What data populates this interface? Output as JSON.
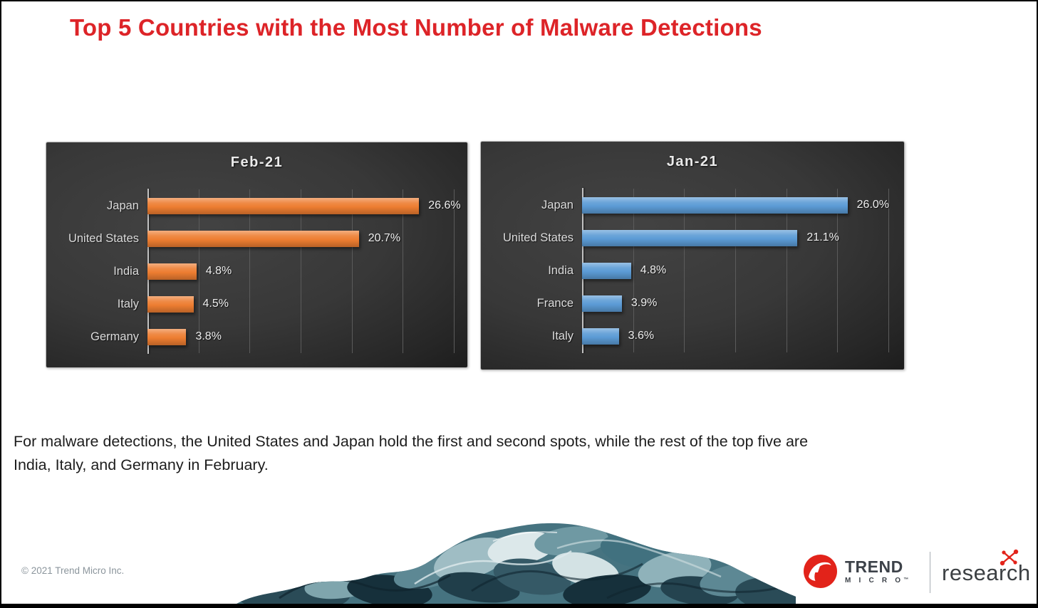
{
  "slide": {
    "title": "Top 5 Countries with the Most Number of Malware Detections",
    "body_lines": [
      "For malware detections, the United States and Japan hold the first and second spots, while the rest of the top five are",
      "India, Italy, and Germany in February."
    ],
    "copyright": "© 2021 Trend Micro Inc."
  },
  "logo": {
    "brand_line1": "TREND",
    "brand_line2": "M I C R O",
    "trademark": "™",
    "research_label": "research"
  },
  "colors": {
    "title_red": "#DD2428",
    "brand_red": "#E2231A",
    "feb_bar_orange": "#ED7D31",
    "jan_bar_blue": "#5B9BD5",
    "chart_background": "#333333",
    "chart_text": "#E0E0E0"
  },
  "chart_data": [
    {
      "type": "bar",
      "orientation": "horizontal",
      "title": "Feb-21",
      "categories": [
        "Japan",
        "United States",
        "India",
        "Italy",
        "Germany"
      ],
      "values": [
        26.6,
        20.7,
        4.8,
        4.5,
        3.8
      ],
      "value_labels": [
        "26.6%",
        "20.7%",
        "4.8%",
        "4.5%",
        "3.8%"
      ],
      "bar_color": "#ED7D31",
      "xlim": [
        0,
        30
      ],
      "gridline_step": 5,
      "grid": "vertical-lines",
      "legend": "none",
      "background": "dark"
    },
    {
      "type": "bar",
      "orientation": "horizontal",
      "title": "Jan-21",
      "categories": [
        "Japan",
        "United States",
        "India",
        "France",
        "Italy"
      ],
      "values": [
        26.0,
        21.1,
        4.8,
        3.9,
        3.6
      ],
      "value_labels": [
        "26.0%",
        "21.1%",
        "4.8%",
        "3.9%",
        "3.6%"
      ],
      "bar_color": "#5B9BD5",
      "xlim": [
        0,
        30
      ],
      "gridline_step": 5,
      "grid": "vertical-lines",
      "legend": "none",
      "background": "dark"
    }
  ]
}
